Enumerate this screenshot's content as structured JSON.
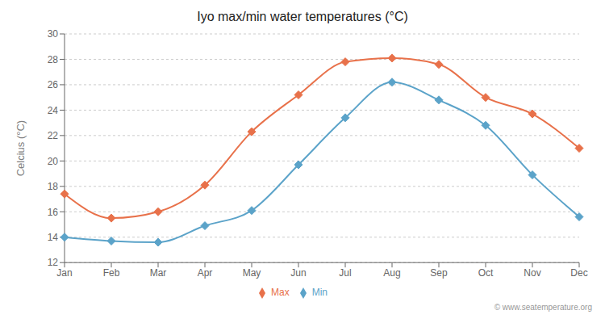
{
  "chart_data": {
    "type": "line",
    "title": "Iyo max/min water temperatures (°C)",
    "y_label": "Celcius (°C)",
    "categories": [
      "Jan",
      "Feb",
      "Mar",
      "Apr",
      "May",
      "Jun",
      "Jul",
      "Aug",
      "Sep",
      "Oct",
      "Nov",
      "Dec"
    ],
    "series": [
      {
        "name": "Max",
        "color": "#e8714a",
        "marker": "diamond",
        "line_style": "smooth",
        "values": [
          17.4,
          15.5,
          16.0,
          18.1,
          22.3,
          25.2,
          27.8,
          28.1,
          27.6,
          25.0,
          23.7,
          21.0
        ]
      },
      {
        "name": "Min",
        "color": "#5ba3c9",
        "marker": "diamond",
        "line_style": "smooth",
        "values": [
          14.0,
          13.7,
          13.6,
          14.9,
          16.1,
          19.7,
          23.4,
          26.2,
          24.8,
          22.8,
          18.9,
          15.6
        ]
      }
    ],
    "ylim": [
      12,
      30
    ],
    "yticks": [
      12,
      14,
      16,
      18,
      20,
      22,
      24,
      26,
      28,
      30
    ],
    "grid": true,
    "legend": "bottom",
    "annotations": [
      "© www.seatemperature.org"
    ]
  }
}
